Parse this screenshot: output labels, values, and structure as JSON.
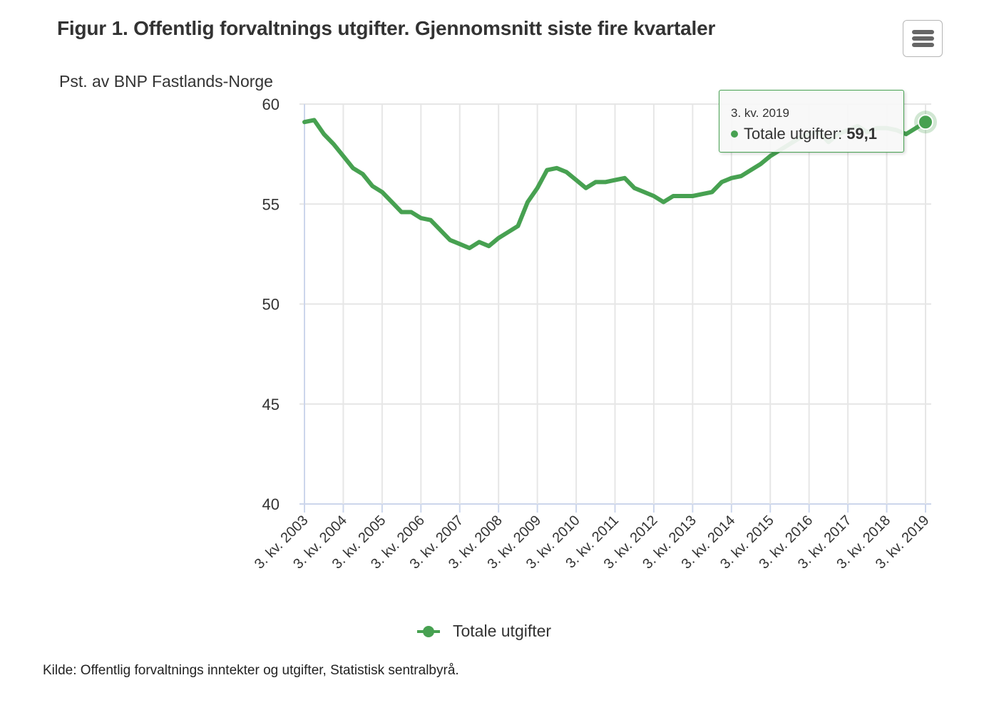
{
  "title": "Figur 1. Offentlig forvaltnings utgifter. Gjennomsnitt siste fire kvartaler",
  "menu_button": {
    "icon": "hamburger-menu-icon"
  },
  "source": "Kilde: Offentlig forvaltnings inntekter og utgifter, Statistisk sentralbyrå.",
  "colors": {
    "series": "#47a151",
    "grid": "#e6e6e6",
    "axis": "#ccd6eb",
    "text": "#333333"
  },
  "tooltip": {
    "header": "3. kv. 2019",
    "series_label": "Totale utgifter:",
    "value": "59,1"
  },
  "legend": {
    "items": [
      {
        "label": "Totale utgifter",
        "color": "#47a151"
      }
    ]
  },
  "chart_data": {
    "type": "line",
    "title": "Figur 1. Offentlig forvaltnings utgifter. Gjennomsnitt siste fire kvartaler",
    "xlabel": "",
    "ylabel": "Pst. av BNP Fastlands-Norge",
    "ylim": [
      40,
      60
    ],
    "yticks": [
      40,
      45,
      50,
      55,
      60
    ],
    "grid": true,
    "legend_position": "bottom-center",
    "x_tick_labels": [
      "3. kv. 2003",
      "3. kv. 2004",
      "3. kv. 2005",
      "3. kv. 2006",
      "3. kv. 2007",
      "3. kv. 2008",
      "3. kv. 2009",
      "3. kv. 2010",
      "3. kv. 2011",
      "3. kv. 2012",
      "3. kv. 2013",
      "3. kv. 2014",
      "3. kv. 2015",
      "3. kv. 2016",
      "3. kv. 2017",
      "3. kv. 2018",
      "3. kv. 2019"
    ],
    "x": [
      "3. kv. 2003",
      "4. kv. 2003",
      "1. kv. 2004",
      "2. kv. 2004",
      "3. kv. 2004",
      "4. kv. 2004",
      "1. kv. 2005",
      "2. kv. 2005",
      "3. kv. 2005",
      "4. kv. 2005",
      "1. kv. 2006",
      "2. kv. 2006",
      "3. kv. 2006",
      "4. kv. 2006",
      "1. kv. 2007",
      "2. kv. 2007",
      "3. kv. 2007",
      "4. kv. 2007",
      "1. kv. 2008",
      "2. kv. 2008",
      "3. kv. 2008",
      "4. kv. 2008",
      "1. kv. 2009",
      "2. kv. 2009",
      "3. kv. 2009",
      "4. kv. 2009",
      "1. kv. 2010",
      "2. kv. 2010",
      "3. kv. 2010",
      "4. kv. 2010",
      "1. kv. 2011",
      "2. kv. 2011",
      "3. kv. 2011",
      "4. kv. 2011",
      "1. kv. 2012",
      "2. kv. 2012",
      "3. kv. 2012",
      "4. kv. 2012",
      "1. kv. 2013",
      "2. kv. 2013",
      "3. kv. 2013",
      "4. kv. 2013",
      "1. kv. 2014",
      "2. kv. 2014",
      "3. kv. 2014",
      "4. kv. 2014",
      "1. kv. 2015",
      "2. kv. 2015",
      "3. kv. 2015",
      "4. kv. 2015",
      "1. kv. 2016",
      "2. kv. 2016",
      "3. kv. 2016",
      "4. kv. 2016",
      "1. kv. 2017",
      "2. kv. 2017",
      "3. kv. 2017",
      "4. kv. 2017",
      "1. kv. 2018",
      "2. kv. 2018",
      "3. kv. 2018",
      "4. kv. 2018",
      "1. kv. 2019",
      "2. kv. 2019",
      "3. kv. 2019"
    ],
    "series": [
      {
        "name": "Totale utgifter",
        "color": "#47a151",
        "values": [
          59.1,
          59.2,
          58.5,
          58.0,
          57.4,
          56.8,
          56.5,
          55.9,
          55.6,
          55.1,
          54.6,
          54.6,
          54.3,
          54.2,
          53.7,
          53.2,
          53.0,
          52.8,
          53.1,
          52.9,
          53.3,
          53.6,
          53.9,
          55.1,
          55.8,
          56.7,
          56.8,
          56.6,
          56.2,
          55.8,
          56.1,
          56.1,
          56.2,
          56.3,
          55.8,
          55.6,
          55.4,
          55.1,
          55.4,
          55.4,
          55.4,
          55.5,
          55.6,
          56.1,
          56.3,
          56.4,
          56.7,
          57.0,
          57.4,
          57.7,
          58.0,
          58.3,
          58.5,
          58.6,
          58.1,
          58.5,
          58.7,
          58.9,
          58.6,
          58.8,
          58.8,
          58.7,
          58.5,
          58.8,
          59.1
        ]
      }
    ]
  }
}
